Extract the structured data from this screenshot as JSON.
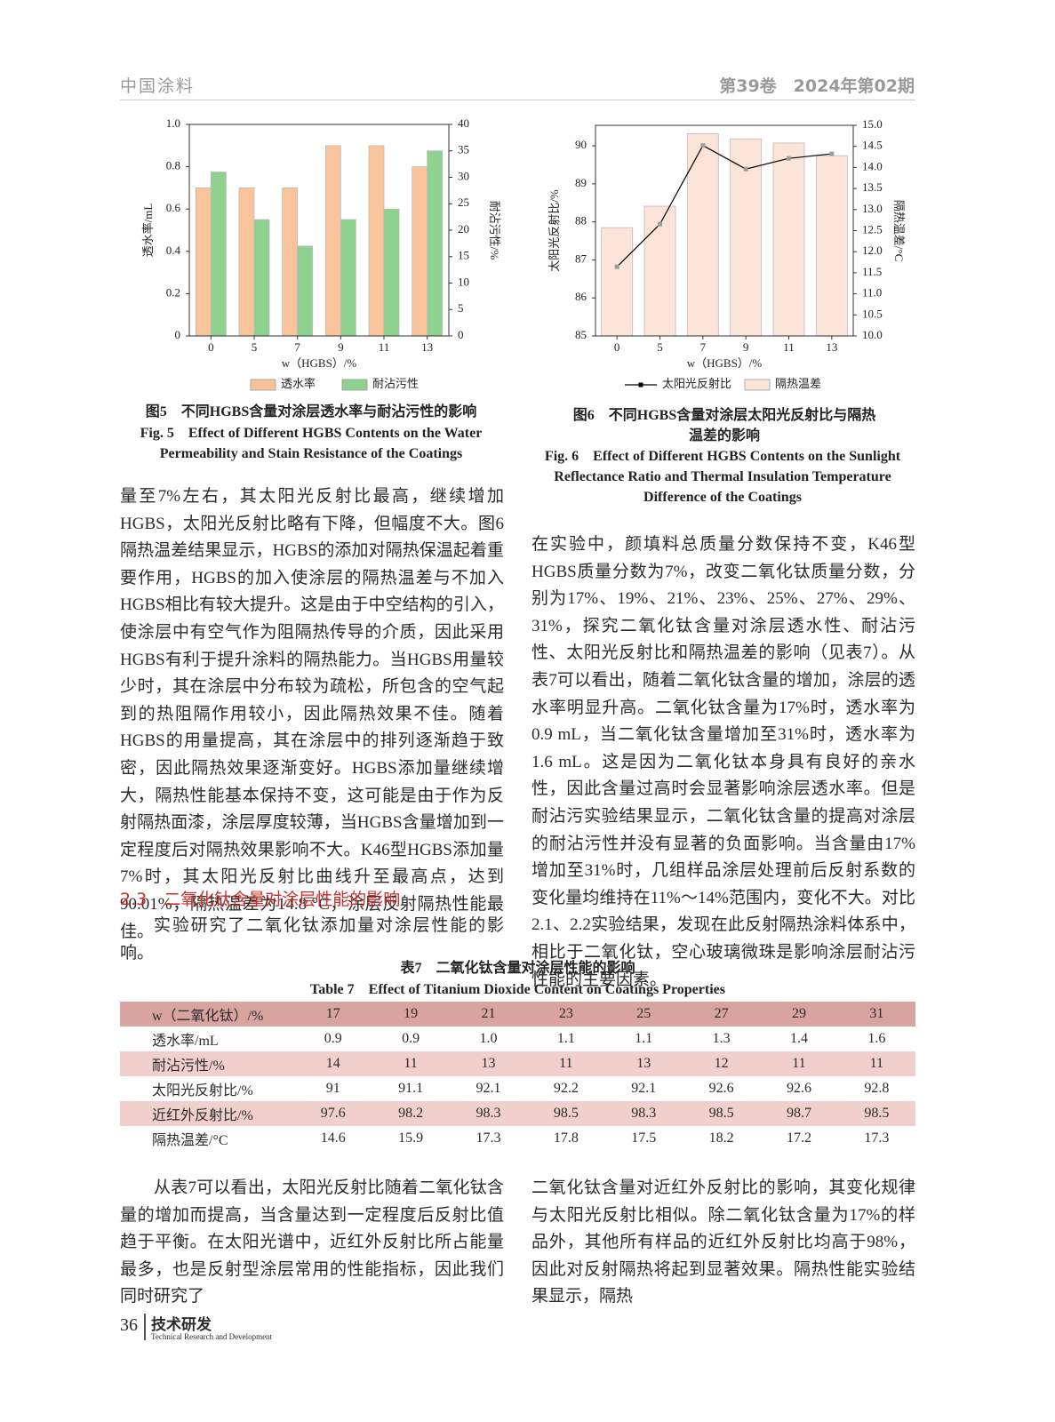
{
  "header": {
    "journal": "中国涂料",
    "issue": "第39卷　2024年第02期"
  },
  "chart_data": [
    {
      "type": "bar",
      "title": "图5　不同HGBS含量对涂层透水率与耐沾污性的影响",
      "title_en": "Fig. 5　Effect of Different HGBS Contents on the Water Permeability and Stain Resistance of the Coatings",
      "xlabel": "w（HGBS）/%",
      "ylabel": "透水率/mL",
      "y2label": "耐沾污性/%",
      "categories": [
        "0",
        "5",
        "7",
        "9",
        "11",
        "13"
      ],
      "ylim": [
        0,
        1
      ],
      "yticks": [
        0,
        0.2,
        0.4,
        0.6,
        0.8,
        {
          "value": 1,
          "label": "1.0"
        }
      ],
      "y2lim": [
        0,
        40
      ],
      "y2ticks": [
        0,
        5,
        10,
        15,
        20,
        25,
        30,
        35,
        40
      ],
      "legend": "bottom",
      "series": [
        {
          "name": "透水率",
          "color": "#f9c49b",
          "values": [
            0.7,
            0.7,
            0.7,
            0.9,
            0.9,
            0.8
          ]
        },
        {
          "name": "耐沾污性",
          "color": "#8fd18f",
          "axis": "y2",
          "values": [
            31,
            22,
            17,
            22,
            24,
            35
          ]
        }
      ]
    },
    {
      "type": "combo",
      "title": "图6　不同HGBS含量对涂层太阳光反射比与隔热温差的影响",
      "title_en": "Fig. 6　Effect of Different HGBS Contents on the Sunlight Reflectance Ratio and Thermal Insulation Temperature Difference of the Coatings",
      "xlabel": "w（HGBS）/%",
      "ylabel": "太阳光反射比/%",
      "y2label": "隔热温差/°C",
      "categories": [
        "0",
        "5",
        "7",
        "9",
        "11",
        "13"
      ],
      "ylim": [
        85,
        90.54
      ],
      "yticks": [
        85,
        86,
        87,
        88,
        89,
        90
      ],
      "y2lim": [
        10,
        15
      ],
      "y2ticks": [
        {
          "value": 10,
          "label": "10.0"
        },
        10.5,
        {
          "value": 11,
          "label": "11.0"
        },
        11.5,
        {
          "value": 12,
          "label": "12.0"
        },
        12.5,
        {
          "value": 13,
          "label": "13.0"
        },
        13.5,
        {
          "value": 14,
          "label": "14.0"
        },
        14.5,
        {
          "value": 15,
          "label": "15.0"
        }
      ],
      "legend": "bottom",
      "series": [
        {
          "name": "太阳光反射比",
          "type": "line",
          "color": "#000000",
          "marker_color": "#9c9c9c",
          "values": [
            86.82,
            87.94,
            90.01,
            89.39,
            89.67,
            89.79
          ]
        },
        {
          "name": "隔热温差",
          "type": "bar",
          "color": "#fde4d8",
          "axis": "y2",
          "values": [
            12.57,
            13.08,
            14.8,
            14.68,
            14.58,
            14.28
          ]
        }
      ]
    }
  ],
  "body": {
    "left_paragraph": "量至7%左右，其太阳光反射比最高，继续增加HGBS，太阳光反射比略有下降，但幅度不大。图6隔热温差结果显示，HGBS的添加对隔热保温起着重要作用，HGBS的加入使涂层的隔热温差与不加入HGBS相比有较大提升。这是由于中空结构的引入，使涂层中有空气作为阻隔热传导的介质，因此采用HGBS有利于提升涂料的隔热能力。当HGBS用量较少时，其在涂层中分布较为疏松，所包含的空气起到的热阻隔作用较小，因此隔热效果不佳。随着HGBS的用量提高，其在涂层中的排列逐渐趋于致密，因此隔热效果逐渐变好。HGBS添加量继续增大，隔热性能基本保持不变，这可能是由于作为反射隔热面漆，涂层厚度较薄，当HGBS含量增加到一定程度后对隔热效果影响不大。K46型HGBS添加量7%时，其太阳光反射比曲线升至最高点，达到90.01%，隔热温差为14.8 °C，涂层反射隔热性能最佳。",
    "heading": "2.3　二氧化钛含量对涂层性能的影响",
    "left_intro": "实验研究了二氧化钛添加量对涂层性能的影响。",
    "right_paragraph": "在实验中，颜填料总质量分数保持不变，K46型HGBS质量分数为7%，改变二氧化钛质量分数，分别为17%、19%、21%、23%、25%、27%、29%、31%，探究二氧化钛含量对涂层透水性、耐沾污性、太阳光反射比和隔热温差的影响（见表7）。从表7可以看出，随着二氧化钛含量的增加，涂层的透水率明显升高。二氧化钛含量为17%时，透水率为0.9 mL，当二氧化钛含量增加至31%时，透水率为1.6 mL。这是因为二氧化钛本身具有良好的亲水性，因此含量过高时会显著影响涂层透水率。但是耐沾污实验结果显示，二氧化钛含量的提高对涂层的耐沾污性并没有显著的负面影响。当含量由17%增加至31%时，几组样品涂层处理前后反射系数的变化量均维持在11%～14%范围内，变化不大。对比2.1、2.2实验结果，发现在此反射隔热涂料体系中，相比于二氧化钛，空心玻璃微珠是影响涂层耐沾污性能的主要因素。"
  },
  "table": {
    "title": "表7　二氧化钛含量对涂层性能的影响",
    "title_en": "Table 7　Effect of Titanium Dioxide Content on Coatings Properties",
    "rows": [
      [
        "w（二氧化钛）/%",
        "17",
        "19",
        "21",
        "23",
        "25",
        "27",
        "29",
        "31"
      ],
      [
        "透水率/mL",
        "0.9",
        "0.9",
        "1.0",
        "1.1",
        "1.1",
        "1.3",
        "1.4",
        "1.6"
      ],
      [
        "耐沾污性/%",
        "14",
        "11",
        "13",
        "11",
        "13",
        "12",
        "11",
        "11"
      ],
      [
        "太阳光反射比/%",
        "91",
        "91.1",
        "92.1",
        "92.2",
        "92.1",
        "92.6",
        "92.6",
        "92.8"
      ],
      [
        "近红外反射比/%",
        "97.6",
        "98.2",
        "98.3",
        "98.5",
        "98.3",
        "98.5",
        "98.7",
        "98.5"
      ],
      [
        "隔热温差/°C",
        "14.6",
        "15.9",
        "17.3",
        "17.8",
        "17.5",
        "18.2",
        "17.2",
        "17.3"
      ]
    ]
  },
  "bottom": {
    "left": "从表7可以看出，太阳光反射比随着二氧化钛含量的增加而提高，当含量达到一定程度后反射比值趋于平衡。在太阳光谱中，近红外反射比所占能量最多，也是反射型涂层常用的性能指标，因此我们同时研究了",
    "right": "二氧化钛含量对近红外反射比的影响，其变化规律与太阳光反射比相似。除二氧化钛含量为17%的样品外，其他所有样品的近红外反射比均高于98%，因此对反射隔热将起到显著效果。隔热性能实验结果显示，隔热"
  },
  "footer": {
    "page": "36",
    "section": "技术研发",
    "section_en": "Technical Research and Development"
  }
}
